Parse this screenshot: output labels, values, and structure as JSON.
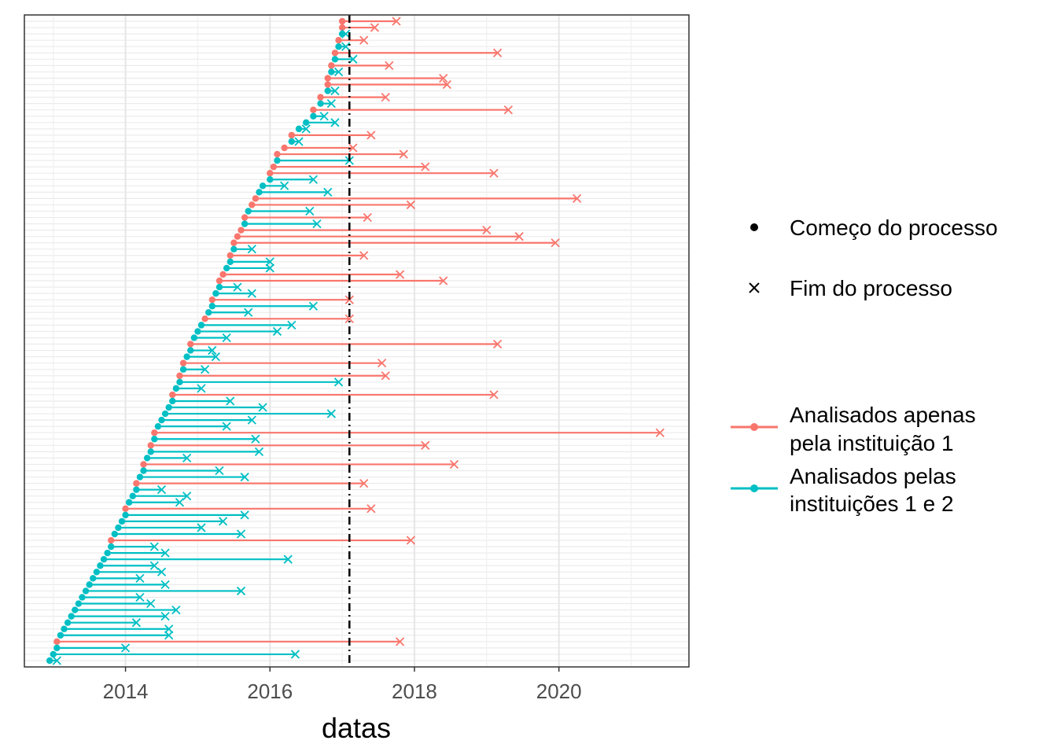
{
  "chart_data": {
    "type": "dumbbell",
    "xlabel": "datas",
    "x_ticks": [
      2014,
      2016,
      2018,
      2020
    ],
    "xlim": [
      2012.6,
      2021.8
    ],
    "grid": true,
    "reference_line": {
      "x": 2017.1,
      "style": "dashdot",
      "color": "#000000"
    },
    "legend": {
      "placement": "right",
      "shape_entries": [
        {
          "label": "Começo do processo",
          "shape": "point"
        },
        {
          "label": "Fim do processo",
          "shape": "cross"
        }
      ],
      "color_entries": [
        {
          "lines": [
            "Analisados apenas",
            "pela instituição 1"
          ],
          "color": "#F8766D"
        },
        {
          "lines": [
            "Analisados pelas",
            "instituições 1 e 2"
          ],
          "color": "#00BFC4"
        }
      ]
    },
    "series": [
      {
        "name": "Analisados apenas pela instituição 1",
        "color": "#F8766D",
        "segments": [
          {
            "start": 2017.0,
            "end": 2017.75
          },
          {
            "start": 2017.0,
            "end": 2017.45
          },
          {
            "start": 2016.95,
            "end": 2017.3
          },
          {
            "start": 2016.9,
            "end": 2019.15
          },
          {
            "start": 2016.85,
            "end": 2017.65
          },
          {
            "start": 2016.8,
            "end": 2018.4
          },
          {
            "start": 2016.8,
            "end": 2018.45
          },
          {
            "start": 2016.7,
            "end": 2017.6
          },
          {
            "start": 2016.6,
            "end": 2019.3
          },
          {
            "start": 2016.3,
            "end": 2017.4
          },
          {
            "start": 2016.2,
            "end": 2017.15
          },
          {
            "start": 2016.1,
            "end": 2017.85
          },
          {
            "start": 2016.05,
            "end": 2018.15
          },
          {
            "start": 2016.0,
            "end": 2019.1
          },
          {
            "start": 2015.8,
            "end": 2020.25
          },
          {
            "start": 2015.75,
            "end": 2017.95
          },
          {
            "start": 2015.65,
            "end": 2017.35
          },
          {
            "start": 2015.6,
            "end": 2019.0
          },
          {
            "start": 2015.55,
            "end": 2019.45
          },
          {
            "start": 2015.5,
            "end": 2019.95
          },
          {
            "start": 2015.45,
            "end": 2017.3
          },
          {
            "start": 2015.35,
            "end": 2017.8
          },
          {
            "start": 2015.3,
            "end": 2018.4
          },
          {
            "start": 2015.2,
            "end": 2017.1
          },
          {
            "start": 2015.1,
            "end": 2017.1
          },
          {
            "start": 2014.9,
            "end": 2019.15
          },
          {
            "start": 2014.8,
            "end": 2017.55
          },
          {
            "start": 2014.75,
            "end": 2017.6
          },
          {
            "start": 2014.65,
            "end": 2019.1
          },
          {
            "start": 2014.4,
            "end": 2021.4
          },
          {
            "start": 2014.35,
            "end": 2018.15
          },
          {
            "start": 2014.25,
            "end": 2018.55
          },
          {
            "start": 2014.15,
            "end": 2017.3
          },
          {
            "start": 2014.0,
            "end": 2017.4
          },
          {
            "start": 2013.8,
            "end": 2017.95
          },
          {
            "start": 2013.05,
            "end": 2017.8
          }
        ]
      },
      {
        "name": "Analisados pelas instituições 1 e 2",
        "color": "#00BFC4",
        "segments": [
          {
            "start": 2017.0,
            "end": 2017.05
          },
          {
            "start": 2016.95,
            "end": 2017.05
          },
          {
            "start": 2016.9,
            "end": 2017.15
          },
          {
            "start": 2016.85,
            "end": 2016.95
          },
          {
            "start": 2016.8,
            "end": 2016.9
          },
          {
            "start": 2016.7,
            "end": 2016.85
          },
          {
            "start": 2016.6,
            "end": 2016.75
          },
          {
            "start": 2016.5,
            "end": 2016.9
          },
          {
            "start": 2016.4,
            "end": 2016.5
          },
          {
            "start": 2016.3,
            "end": 2016.4
          },
          {
            "start": 2016.1,
            "end": 2017.1
          },
          {
            "start": 2016.0,
            "end": 2016.6
          },
          {
            "start": 2015.9,
            "end": 2016.2
          },
          {
            "start": 2015.85,
            "end": 2016.8
          },
          {
            "start": 2015.7,
            "end": 2016.55
          },
          {
            "start": 2015.65,
            "end": 2016.65
          },
          {
            "start": 2015.5,
            "end": 2015.75
          },
          {
            "start": 2015.45,
            "end": 2016.0
          },
          {
            "start": 2015.4,
            "end": 2016.0
          },
          {
            "start": 2015.3,
            "end": 2015.55
          },
          {
            "start": 2015.25,
            "end": 2015.75
          },
          {
            "start": 2015.2,
            "end": 2016.6
          },
          {
            "start": 2015.15,
            "end": 2015.7
          },
          {
            "start": 2015.05,
            "end": 2016.3
          },
          {
            "start": 2015.0,
            "end": 2016.1
          },
          {
            "start": 2014.95,
            "end": 2015.4
          },
          {
            "start": 2014.9,
            "end": 2015.2
          },
          {
            "start": 2014.85,
            "end": 2015.25
          },
          {
            "start": 2014.8,
            "end": 2015.1
          },
          {
            "start": 2014.75,
            "end": 2016.95
          },
          {
            "start": 2014.7,
            "end": 2015.05
          },
          {
            "start": 2014.65,
            "end": 2015.45
          },
          {
            "start": 2014.6,
            "end": 2015.9
          },
          {
            "start": 2014.55,
            "end": 2016.85
          },
          {
            "start": 2014.5,
            "end": 2015.75
          },
          {
            "start": 2014.45,
            "end": 2015.4
          },
          {
            "start": 2014.4,
            "end": 2015.8
          },
          {
            "start": 2014.35,
            "end": 2015.85
          },
          {
            "start": 2014.3,
            "end": 2014.85
          },
          {
            "start": 2014.25,
            "end": 2015.3
          },
          {
            "start": 2014.2,
            "end": 2015.65
          },
          {
            "start": 2014.15,
            "end": 2014.5
          },
          {
            "start": 2014.1,
            "end": 2014.85
          },
          {
            "start": 2014.05,
            "end": 2014.75
          },
          {
            "start": 2014.0,
            "end": 2015.65
          },
          {
            "start": 2013.95,
            "end": 2015.35
          },
          {
            "start": 2013.9,
            "end": 2015.05
          },
          {
            "start": 2013.85,
            "end": 2015.6
          },
          {
            "start": 2013.8,
            "end": 2014.4
          },
          {
            "start": 2013.75,
            "end": 2014.55
          },
          {
            "start": 2013.7,
            "end": 2016.25
          },
          {
            "start": 2013.65,
            "end": 2014.4
          },
          {
            "start": 2013.6,
            "end": 2014.5
          },
          {
            "start": 2013.55,
            "end": 2014.2
          },
          {
            "start": 2013.5,
            "end": 2014.55
          },
          {
            "start": 2013.45,
            "end": 2015.6
          },
          {
            "start": 2013.4,
            "end": 2014.2
          },
          {
            "start": 2013.35,
            "end": 2014.35
          },
          {
            "start": 2013.3,
            "end": 2014.7
          },
          {
            "start": 2013.25,
            "end": 2014.55
          },
          {
            "start": 2013.2,
            "end": 2014.15
          },
          {
            "start": 2013.15,
            "end": 2014.6
          },
          {
            "start": 2013.1,
            "end": 2014.6
          },
          {
            "start": 2013.05,
            "end": 2014.0
          },
          {
            "start": 2013.0,
            "end": 2016.35
          },
          {
            "start": 2012.95,
            "end": 2013.05
          }
        ]
      }
    ]
  }
}
